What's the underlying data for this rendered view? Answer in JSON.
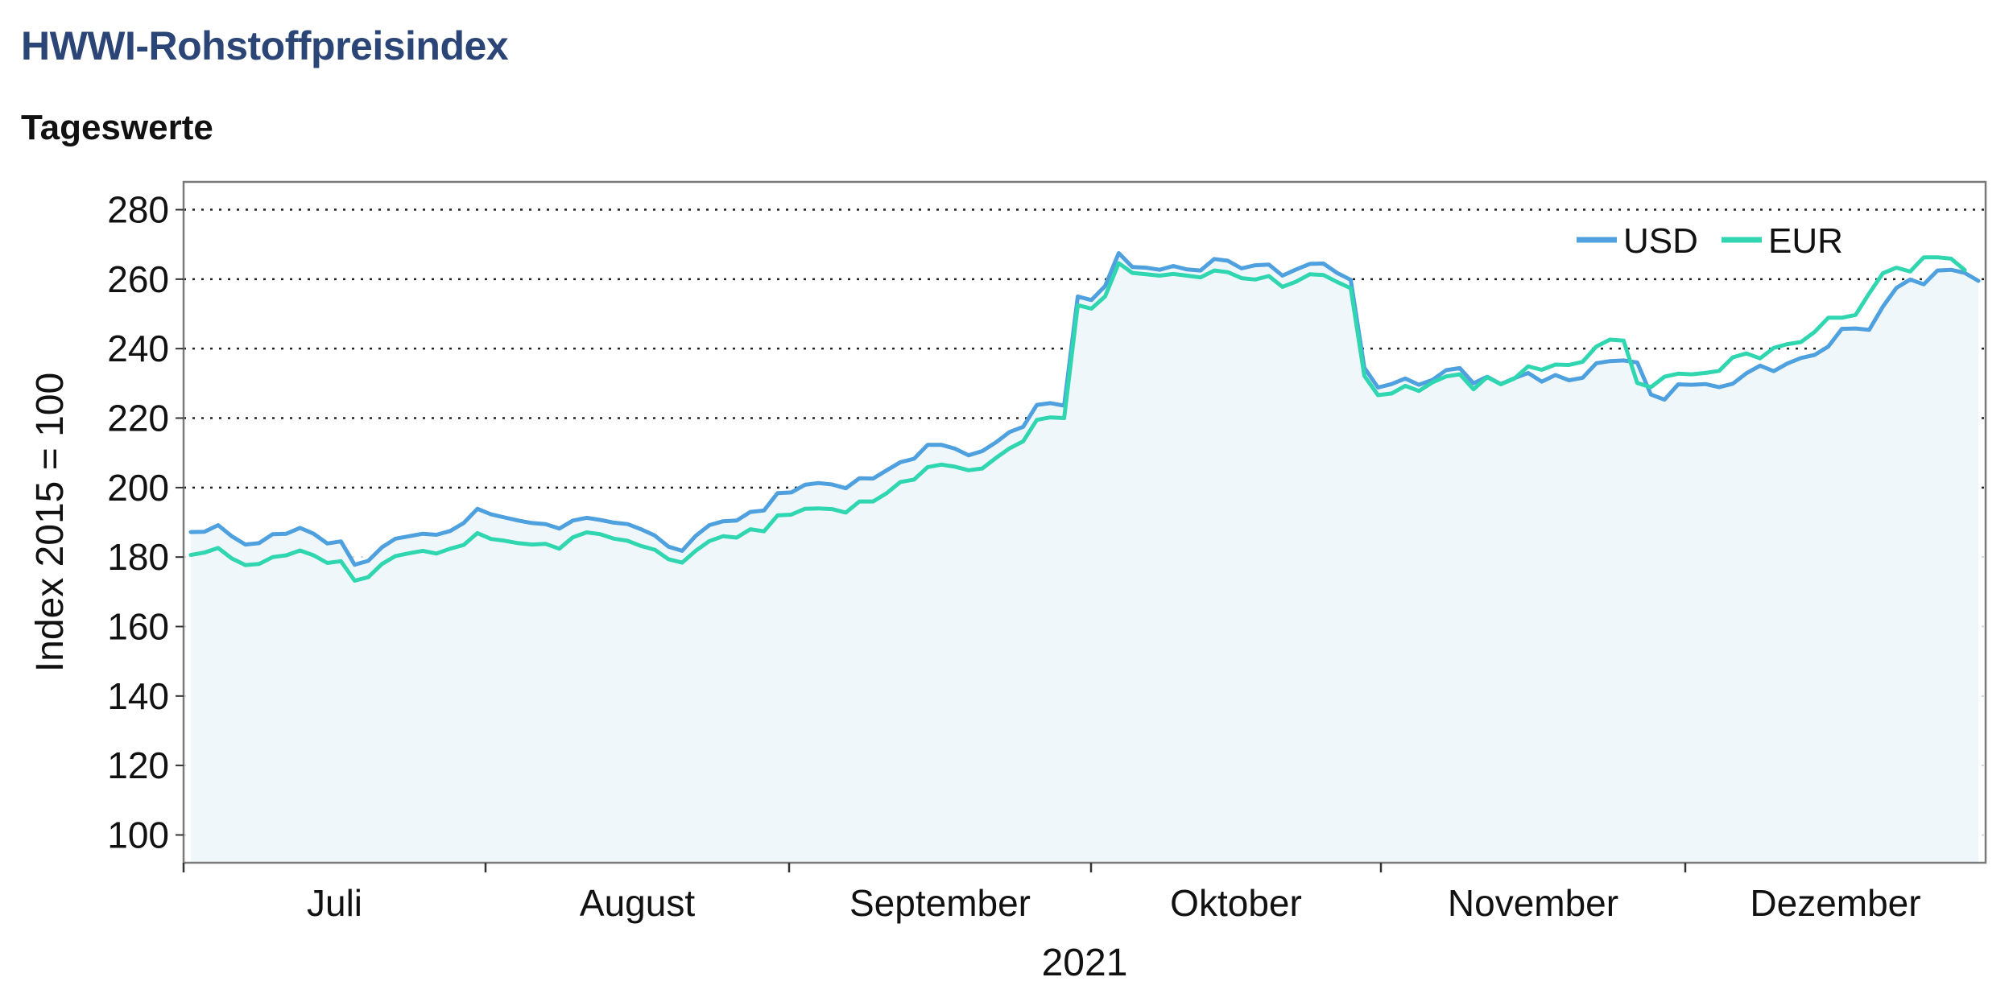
{
  "header": {
    "title": "HWWI-Rohstoffpreisindex",
    "subtitle": "Tageswerte"
  },
  "colors": {
    "title": "#2b4576",
    "usd": "#4ea1de",
    "eur": "#30d6b0",
    "area_fill": "#f0f7fb",
    "frame": "#7a7a7a"
  },
  "chart_data": {
    "type": "line",
    "title": "HWWI-Rohstoffpreisindex",
    "subtitle": "Tageswerte",
    "ylabel": "Index 2015 = 100",
    "xlabel": "2021",
    "ylim": [
      92,
      288
    ],
    "yticks": [
      100,
      120,
      140,
      160,
      180,
      200,
      220,
      240,
      260,
      280
    ],
    "months": [
      "Juli",
      "August",
      "September",
      "Oktober",
      "November",
      "Dezember"
    ],
    "grid": "horizontal",
    "legend_position": "top-right",
    "series": [
      {
        "name": "USD",
        "color": "#4ea1de",
        "values": [
          187.2,
          187.3,
          189.2,
          186.0,
          183.6,
          184.0,
          186.6,
          186.7,
          188.4,
          186.7,
          183.9,
          184.5,
          177.8,
          178.9,
          182.8,
          185.3,
          186.0,
          186.7,
          186.4,
          187.5,
          189.8,
          193.9,
          192.3,
          191.4,
          190.5,
          189.8,
          189.5,
          188.2,
          190.5,
          191.3,
          190.7,
          189.9,
          189.5,
          188.0,
          186.2,
          183.0,
          181.8,
          186.1,
          189.2,
          190.3,
          190.5,
          193.0,
          193.4,
          198.4,
          198.6,
          200.8,
          201.3,
          200.9,
          199.8,
          202.7,
          202.6,
          205.0,
          207.3,
          208.3,
          212.3,
          212.3,
          211.2,
          209.3,
          210.5,
          213.0,
          216.0,
          217.5,
          223.8,
          224.3,
          223.6,
          255.0,
          254.0,
          258.0,
          267.5,
          263.5,
          263.3,
          262.7,
          263.8,
          262.8,
          262.5,
          265.8,
          265.3,
          263.1,
          264.0,
          264.2,
          261.0,
          262.8,
          264.4,
          264.5,
          261.8,
          259.8,
          234.5,
          228.8,
          229.8,
          231.4,
          229.6,
          231.0,
          233.8,
          234.4,
          230.0,
          231.9,
          229.8,
          231.5,
          233.0,
          230.5,
          232.4,
          230.9,
          231.6,
          235.8,
          236.4,
          236.6,
          236.0,
          226.8,
          225.3,
          229.7,
          229.6,
          229.8,
          228.9,
          229.9,
          232.9,
          235.1,
          233.5,
          235.7,
          237.3,
          238.2,
          240.6,
          245.7,
          245.8,
          245.4,
          252.1,
          257.5,
          259.9,
          258.5,
          262.5,
          262.7,
          261.8,
          259.5
        ]
      },
      {
        "name": "EUR",
        "color": "#30d6b0",
        "values": [
          180.6,
          181.3,
          182.6,
          179.6,
          177.7,
          178.0,
          180.0,
          180.5,
          181.9,
          180.5,
          178.3,
          178.8,
          173.2,
          174.2,
          178.0,
          180.3,
          181.1,
          181.8,
          181.0,
          182.4,
          183.5,
          186.9,
          185.2,
          184.7,
          184.0,
          183.6,
          183.8,
          182.4,
          185.7,
          187.1,
          186.6,
          185.3,
          184.7,
          183.2,
          182.1,
          179.4,
          178.4,
          181.8,
          184.6,
          186.0,
          185.6,
          188.0,
          187.4,
          192.0,
          192.2,
          193.9,
          194.0,
          193.8,
          192.8,
          196.0,
          196.0,
          198.4,
          201.6,
          202.3,
          205.9,
          206.6,
          206.0,
          205.0,
          205.5,
          208.5,
          211.3,
          213.3,
          219.5,
          220.2,
          220.0,
          252.5,
          251.5,
          255.0,
          264.6,
          261.8,
          261.4,
          261.0,
          261.5,
          261.0,
          260.5,
          262.5,
          262.0,
          260.3,
          259.9,
          260.9,
          257.8,
          259.3,
          261.4,
          261.2,
          259.2,
          257.4,
          232.2,
          226.6,
          227.1,
          229.3,
          227.8,
          230.3,
          232.0,
          232.6,
          228.3,
          231.8,
          229.7,
          231.4,
          234.9,
          233.9,
          235.4,
          235.3,
          236.2,
          240.6,
          242.6,
          242.3,
          230.1,
          228.9,
          231.9,
          232.8,
          232.6,
          233.0,
          233.6,
          237.5,
          238.6,
          237.2,
          240.2,
          241.3,
          241.9,
          244.8,
          248.9,
          248.9,
          249.7,
          255.9,
          261.7,
          263.3,
          262.2,
          266.3,
          266.3,
          265.9,
          262.6
        ]
      }
    ]
  }
}
